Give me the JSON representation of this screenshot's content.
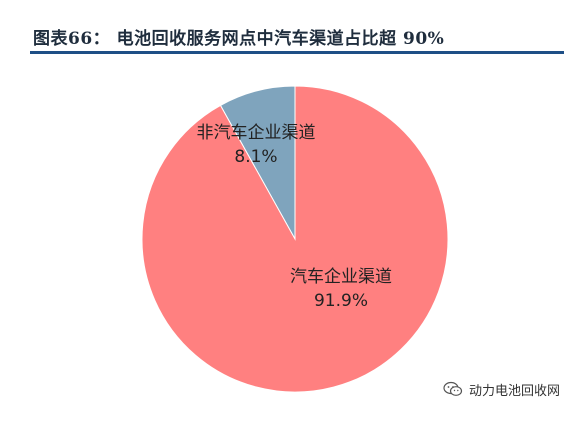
{
  "header": {
    "title": "图表66：   电池回收服务网点中汽车渠道占比超 90%"
  },
  "colors": {
    "rule": "#1e4f86",
    "auto_slice": "#ff8080",
    "non_auto_slice": "#7fa4bd"
  },
  "chart_data": {
    "type": "pie",
    "title": "",
    "slices": [
      {
        "name": "非汽车企业渠道",
        "value": 8.1,
        "label": "8.1%",
        "color": "#7fa4bd"
      },
      {
        "name": "汽车企业渠道",
        "value": 91.9,
        "label": "91.9%",
        "color": "#ff8080"
      }
    ],
    "start": "12 o'clock, counter-clockwise",
    "legend": "none"
  },
  "watermark": {
    "icon": "wechat-icon",
    "text": "动力电池回收网"
  }
}
